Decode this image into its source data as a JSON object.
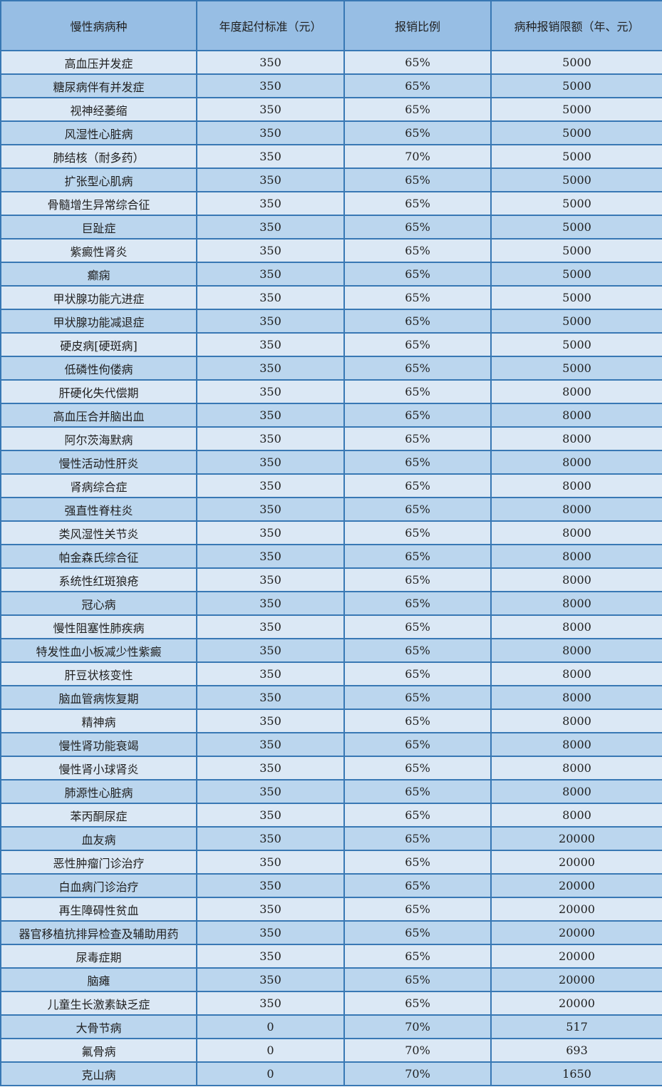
{
  "table": {
    "columns": [
      {
        "label": "慢性病病种"
      },
      {
        "label": "年度起付标准（元）"
      },
      {
        "label": "报销比例"
      },
      {
        "label": "病种报销限额（年、元）"
      }
    ],
    "rows": [
      {
        "disease": "高血压并发症",
        "deductible": "350",
        "ratio": "65%",
        "limit": "5000"
      },
      {
        "disease": "糖尿病伴有并发症",
        "deductible": "350",
        "ratio": "65%",
        "limit": "5000"
      },
      {
        "disease": "视神经萎缩",
        "deductible": "350",
        "ratio": "65%",
        "limit": "5000"
      },
      {
        "disease": "风湿性心脏病",
        "deductible": "350",
        "ratio": "65%",
        "limit": "5000"
      },
      {
        "disease": "肺结核（耐多药）",
        "deductible": "350",
        "ratio": "70%",
        "limit": "5000"
      },
      {
        "disease": "扩张型心肌病",
        "deductible": "350",
        "ratio": "65%",
        "limit": "5000"
      },
      {
        "disease": "骨髓增生异常综合征",
        "deductible": "350",
        "ratio": "65%",
        "limit": "5000"
      },
      {
        "disease": "巨趾症",
        "deductible": "350",
        "ratio": "65%",
        "limit": "5000"
      },
      {
        "disease": "紫癜性肾炎",
        "deductible": "350",
        "ratio": "65%",
        "limit": "5000"
      },
      {
        "disease": "癫痫",
        "deductible": "350",
        "ratio": "65%",
        "limit": "5000"
      },
      {
        "disease": "甲状腺功能亢进症",
        "deductible": "350",
        "ratio": "65%",
        "limit": "5000"
      },
      {
        "disease": "甲状腺功能减退症",
        "deductible": "350",
        "ratio": "65%",
        "limit": "5000"
      },
      {
        "disease": "硬皮病[硬斑病]",
        "deductible": "350",
        "ratio": "65%",
        "limit": "5000"
      },
      {
        "disease": "低磷性佝偻病",
        "deductible": "350",
        "ratio": "65%",
        "limit": "5000"
      },
      {
        "disease": "肝硬化失代偿期",
        "deductible": "350",
        "ratio": "65%",
        "limit": "8000"
      },
      {
        "disease": "高血压合并脑出血",
        "deductible": "350",
        "ratio": "65%",
        "limit": "8000"
      },
      {
        "disease": "阿尔茨海默病",
        "deductible": "350",
        "ratio": "65%",
        "limit": "8000"
      },
      {
        "disease": "慢性活动性肝炎",
        "deductible": "350",
        "ratio": "65%",
        "limit": "8000"
      },
      {
        "disease": "肾病综合症",
        "deductible": "350",
        "ratio": "65%",
        "limit": "8000"
      },
      {
        "disease": "强直性脊柱炎",
        "deductible": "350",
        "ratio": "65%",
        "limit": "8000"
      },
      {
        "disease": "类风湿性关节炎",
        "deductible": "350",
        "ratio": "65%",
        "limit": "8000"
      },
      {
        "disease": "帕金森氏综合征",
        "deductible": "350",
        "ratio": "65%",
        "limit": "8000"
      },
      {
        "disease": "系统性红斑狼疮",
        "deductible": "350",
        "ratio": "65%",
        "limit": "8000"
      },
      {
        "disease": "冠心病",
        "deductible": "350",
        "ratio": "65%",
        "limit": "8000"
      },
      {
        "disease": "慢性阻塞性肺疾病",
        "deductible": "350",
        "ratio": "65%",
        "limit": "8000"
      },
      {
        "disease": "特发性血小板减少性紫癜",
        "deductible": "350",
        "ratio": "65%",
        "limit": "8000"
      },
      {
        "disease": "肝豆状核变性",
        "deductible": "350",
        "ratio": "65%",
        "limit": "8000"
      },
      {
        "disease": "脑血管病恢复期",
        "deductible": "350",
        "ratio": "65%",
        "limit": "8000"
      },
      {
        "disease": "精神病",
        "deductible": "350",
        "ratio": "65%",
        "limit": "8000"
      },
      {
        "disease": "慢性肾功能衰竭",
        "deductible": "350",
        "ratio": "65%",
        "limit": "8000"
      },
      {
        "disease": "慢性肾小球肾炎",
        "deductible": "350",
        "ratio": "65%",
        "limit": "8000"
      },
      {
        "disease": "肺源性心脏病",
        "deductible": "350",
        "ratio": "65%",
        "limit": "8000"
      },
      {
        "disease": "苯丙酮尿症",
        "deductible": "350",
        "ratio": "65%",
        "limit": "8000"
      },
      {
        "disease": "血友病",
        "deductible": "350",
        "ratio": "65%",
        "limit": "20000"
      },
      {
        "disease": "恶性肿瘤门诊治疗",
        "deductible": "350",
        "ratio": "65%",
        "limit": "20000"
      },
      {
        "disease": "白血病门诊治疗",
        "deductible": "350",
        "ratio": "65%",
        "limit": "20000"
      },
      {
        "disease": "再生障碍性贫血",
        "deductible": "350",
        "ratio": "65%",
        "limit": "20000"
      },
      {
        "disease": "器官移植抗排异检查及辅助用药",
        "deductible": "350",
        "ratio": "65%",
        "limit": "20000"
      },
      {
        "disease": "尿毒症期",
        "deductible": "350",
        "ratio": "65%",
        "limit": "20000"
      },
      {
        "disease": "脑瘫",
        "deductible": "350",
        "ratio": "65%",
        "limit": "20000"
      },
      {
        "disease": "儿童生长激素缺乏症",
        "deductible": "350",
        "ratio": "65%",
        "limit": "20000"
      },
      {
        "disease": "大骨节病",
        "deductible": "0",
        "ratio": "70%",
        "limit": "517"
      },
      {
        "disease": "氟骨病",
        "deductible": "0",
        "ratio": "70%",
        "limit": "693"
      },
      {
        "disease": "克山病",
        "deductible": "0",
        "ratio": "70%",
        "limit": "1650"
      }
    ]
  },
  "colors": {
    "border": "#3878b4",
    "header_bg": "#97bee4",
    "row_light": "#dbe8f5",
    "row_dark": "#bbd6ee",
    "text": "#1f1f1f"
  }
}
